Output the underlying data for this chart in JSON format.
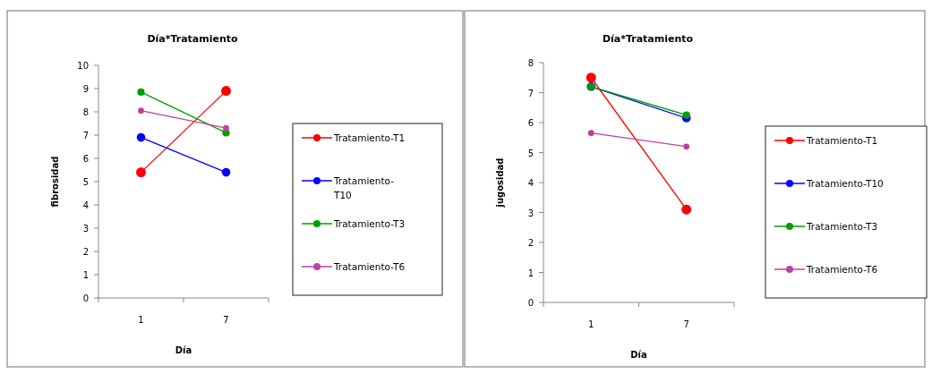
{
  "chart_data": [
    {
      "type": "line",
      "title": "Día*Tratamiento",
      "xlabel": "Día",
      "ylabel": "fibrosidad",
      "categories": [
        "1",
        "7"
      ],
      "ylim": [
        0,
        10
      ],
      "yticks": [
        0,
        1,
        2,
        3,
        4,
        5,
        6,
        7,
        8,
        9,
        10
      ],
      "legend": "right",
      "marker": "circle",
      "series": [
        {
          "name": "Tratamiento-T1",
          "color": "#ff0000",
          "values": [
            5.4,
            8.9
          ]
        },
        {
          "name": "Tratamiento-T10",
          "color": "#0000ff",
          "values": [
            6.9,
            5.4
          ]
        },
        {
          "name": "Tratamiento-T3",
          "color": "#00a000",
          "values": [
            8.85,
            7.1
          ]
        },
        {
          "name": "Tratamiento-T6",
          "color": "#c040a0",
          "values": [
            8.05,
            7.3
          ]
        }
      ]
    },
    {
      "type": "line",
      "title": "Día*Tratamiento",
      "xlabel": "Día",
      "ylabel": "jugosidad",
      "categories": [
        "1",
        "7"
      ],
      "ylim": [
        0,
        8
      ],
      "yticks": [
        0,
        1,
        2,
        3,
        4,
        5,
        6,
        7,
        8
      ],
      "legend": "right",
      "marker": "circle",
      "series": [
        {
          "name": "Tratamiento-T1",
          "color": "#ff0000",
          "values": [
            7.5,
            3.1
          ]
        },
        {
          "name": "Tratamiento-T10",
          "color": "#0000ff",
          "values": [
            7.2,
            6.15
          ]
        },
        {
          "name": "Tratamiento-T3",
          "color": "#00a000",
          "values": [
            7.2,
            6.25
          ]
        },
        {
          "name": "Tratamiento-T6",
          "color": "#c040a0",
          "values": [
            5.65,
            5.2
          ]
        }
      ]
    }
  ]
}
